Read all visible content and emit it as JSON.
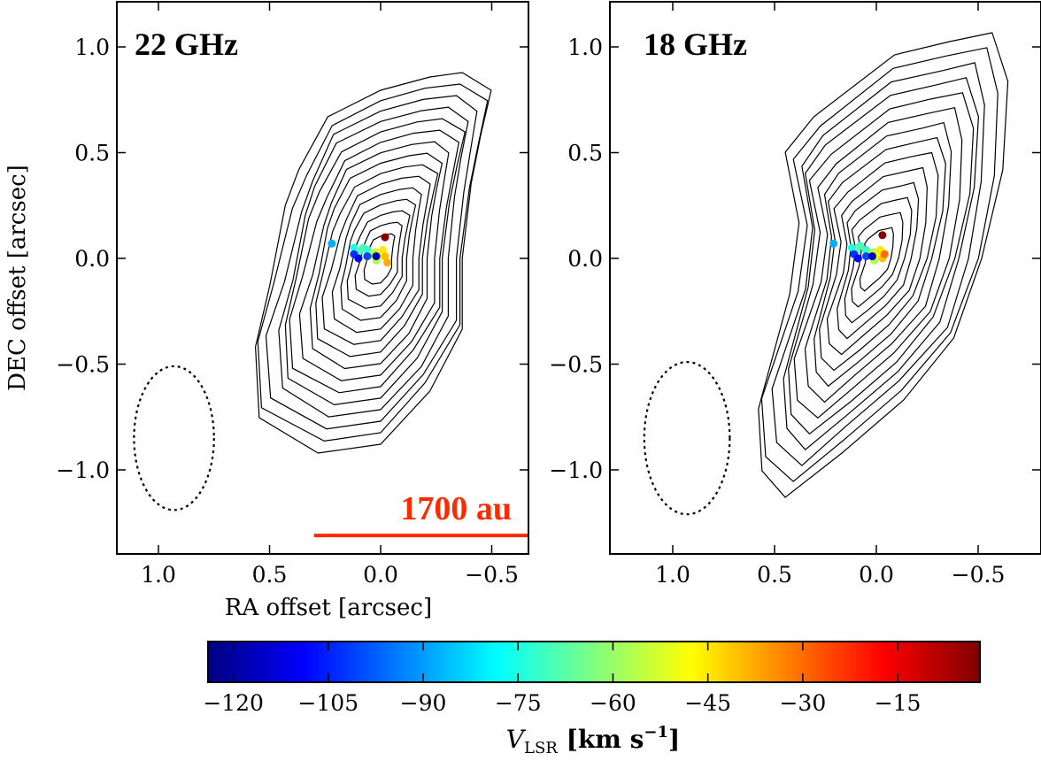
{
  "chart_data": [
    {
      "type": "contour",
      "panel_label": "22 GHz",
      "xlabel": "RA offset [arcsec]",
      "ylabel": "DEC offset [arcsec]",
      "xlim": [
        1.2,
        -0.7
      ],
      "ylim": [
        -1.4,
        1.2
      ],
      "x_ticks": [
        1.0,
        0.5,
        0.0,
        -0.5
      ],
      "x_tick_labels": [
        "1.0",
        "0.5",
        "0.0",
        "−0.5"
      ],
      "y_ticks": [
        1.0,
        0.5,
        0.0,
        -0.5,
        -1.0
      ],
      "y_tick_labels": [
        "1.0",
        "0.5",
        "0.0",
        "−0.5",
        "−1.0"
      ],
      "contour_levels": 15,
      "contour_center": [
        0.0,
        0.0
      ],
      "beam": {
        "x": 0.93,
        "y": -0.85,
        "semi_major": 0.34,
        "semi_minor": 0.18,
        "style": "dotted"
      },
      "scale_bar": {
        "label": "1700 au",
        "x_from": 0.3,
        "x_to": -0.7,
        "y": -1.31,
        "color": "#ff2a00"
      },
      "masers": [
        {
          "x": 0.22,
          "y": 0.07,
          "v": -88
        },
        {
          "x": 0.12,
          "y": 0.05,
          "v": -75
        },
        {
          "x": 0.1,
          "y": 0.03,
          "v": -68
        },
        {
          "x": 0.08,
          "y": 0.05,
          "v": -70
        },
        {
          "x": 0.06,
          "y": 0.04,
          "v": -72
        },
        {
          "x": 0.04,
          "y": 0.02,
          "v": -60
        },
        {
          "x": 0.02,
          "y": 0.03,
          "v": -55
        },
        {
          "x": 0.0,
          "y": 0.01,
          "v": -47
        },
        {
          "x": -0.01,
          "y": 0.04,
          "v": -45
        },
        {
          "x": -0.02,
          "y": 0.01,
          "v": -40
        },
        {
          "x": -0.03,
          "y": -0.02,
          "v": -38
        },
        {
          "x": 0.02,
          "y": -0.01,
          "v": -58
        },
        {
          "x": 0.12,
          "y": 0.02,
          "v": -103
        },
        {
          "x": 0.1,
          "y": 0.0,
          "v": -108
        },
        {
          "x": 0.06,
          "y": 0.01,
          "v": -100
        },
        {
          "x": 0.02,
          "y": 0.01,
          "v": -118
        },
        {
          "x": -0.02,
          "y": 0.1,
          "v": -3
        }
      ]
    },
    {
      "type": "contour",
      "panel_label": "18 GHz",
      "xlim": [
        1.2,
        -0.7
      ],
      "ylim": [
        -1.4,
        1.2
      ],
      "x_ticks": [
        1.0,
        0.5,
        0.0,
        -0.5
      ],
      "x_tick_labels": [
        "1.0",
        "0.5",
        "0.0",
        "−0.5"
      ],
      "y_ticks": [
        1.0,
        0.5,
        0.0,
        -0.5,
        -1.0
      ],
      "y_tick_labels": [
        "1.0",
        "0.5",
        "0.0",
        "−0.5",
        "−1.0"
      ],
      "contour_levels": 14,
      "contour_center": [
        0.0,
        0.0
      ],
      "beam": {
        "x": 0.93,
        "y": -0.85,
        "semi_major": 0.36,
        "semi_minor": 0.21,
        "style": "dotted"
      },
      "masers": [
        {
          "x": 0.21,
          "y": 0.07,
          "v": -88
        },
        {
          "x": 0.12,
          "y": 0.05,
          "v": -75
        },
        {
          "x": 0.1,
          "y": 0.03,
          "v": -68
        },
        {
          "x": 0.08,
          "y": 0.06,
          "v": -70
        },
        {
          "x": 0.05,
          "y": 0.04,
          "v": -72
        },
        {
          "x": 0.03,
          "y": 0.02,
          "v": -60
        },
        {
          "x": 0.01,
          "y": 0.03,
          "v": -55
        },
        {
          "x": -0.01,
          "y": 0.01,
          "v": -47
        },
        {
          "x": -0.02,
          "y": 0.04,
          "v": -45
        },
        {
          "x": -0.03,
          "y": 0.0,
          "v": -40
        },
        {
          "x": -0.04,
          "y": 0.02,
          "v": -30
        },
        {
          "x": 0.01,
          "y": -0.01,
          "v": -58
        },
        {
          "x": 0.11,
          "y": 0.02,
          "v": -103
        },
        {
          "x": 0.09,
          "y": 0.0,
          "v": -108
        },
        {
          "x": 0.05,
          "y": 0.01,
          "v": -100
        },
        {
          "x": 0.02,
          "y": 0.01,
          "v": -118
        },
        {
          "x": -0.03,
          "y": 0.11,
          "v": -3
        }
      ]
    }
  ],
  "colorbar": {
    "title_main": "V",
    "title_sub": "LSR",
    "title_units": " [km s",
    "title_sup": "−1",
    "title_end": "]",
    "vmin": -124,
    "vmax": -2,
    "colormap": "jet",
    "ticks": [
      -120,
      -105,
      -90,
      -75,
      -60,
      -45,
      -30,
      -15
    ],
    "tick_labels": [
      "−120",
      "−105",
      "−90",
      "−75",
      "−60",
      "−45",
      "−30",
      "−15"
    ]
  }
}
